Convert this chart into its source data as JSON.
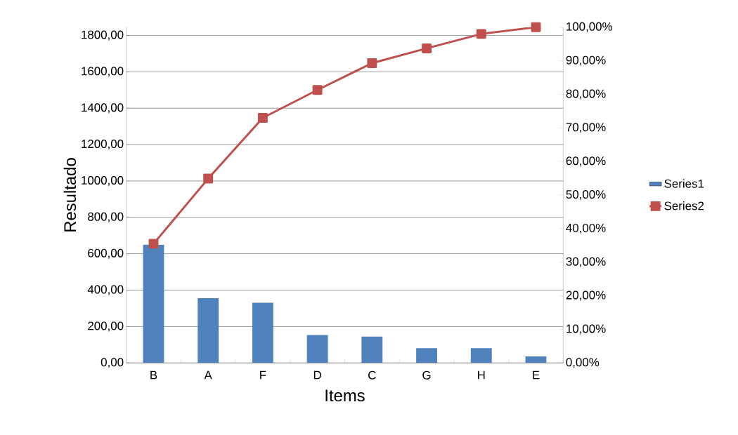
{
  "chart_data": {
    "type": "bar",
    "xlabel": "Items",
    "ylabel": "Resultado",
    "categories": [
      "B",
      "A",
      "F",
      "D",
      "C",
      "G",
      "H",
      "E"
    ],
    "series": [
      {
        "name": "Series1",
        "color": "#4f81bd",
        "values": [
          650,
          356,
          331,
          153,
          145,
          81,
          81,
          36
        ]
      },
      {
        "name": "Series2",
        "type": "line",
        "axis": "y2",
        "color": "#c0504d",
        "marker": "square",
        "values": [
          35.5,
          54.9,
          73.0,
          81.3,
          89.3,
          93.7,
          98.0,
          100
        ]
      }
    ],
    "ylim": [
      0,
      1845
    ],
    "yticks": [
      {
        "value": 0,
        "label": "0,00"
      },
      {
        "value": 200,
        "label": "200,00"
      },
      {
        "value": 400,
        "label": "400,00"
      },
      {
        "value": 600,
        "label": "600,00"
      },
      {
        "value": 800,
        "label": "800,00"
      },
      {
        "value": 1000,
        "label": "1000,00"
      },
      {
        "value": 1200,
        "label": "1200,00"
      },
      {
        "value": 1400,
        "label": "1400,00"
      },
      {
        "value": 1600,
        "label": "1600,00"
      },
      {
        "value": 1800,
        "label": "1800,00"
      }
    ],
    "y2lim": [
      0,
      100
    ],
    "y2ticks": [
      {
        "value": 0,
        "label": "0,00%"
      },
      {
        "value": 10,
        "label": "10,00%"
      },
      {
        "value": 20,
        "label": "20,00%"
      },
      {
        "value": 30,
        "label": "30,00%"
      },
      {
        "value": 40,
        "label": "40,00%"
      },
      {
        "value": 50,
        "label": "50,00%"
      },
      {
        "value": 60,
        "label": "60,00%"
      },
      {
        "value": 70,
        "label": "70,00%"
      },
      {
        "value": 80,
        "label": "80,00%"
      },
      {
        "value": 90,
        "label": "90,00%"
      },
      {
        "value": 100,
        "label": "100,00%"
      }
    ],
    "grid": "y",
    "legend": "right"
  }
}
